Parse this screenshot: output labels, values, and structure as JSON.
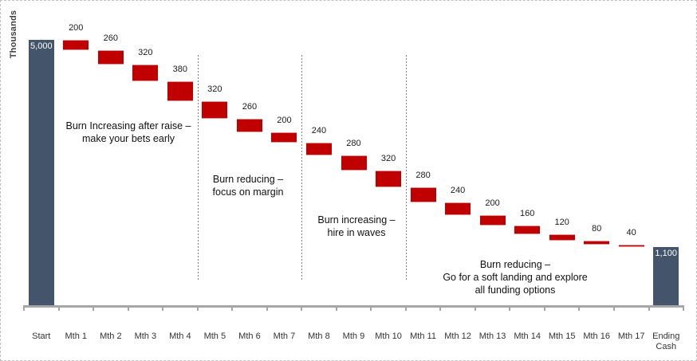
{
  "chart_data": {
    "type": "waterfall",
    "title": "",
    "y_axis_title": "Thousands",
    "axis": {
      "y_min": 0,
      "y_max": 5000,
      "gridlines": false,
      "x_axis_visible": true
    },
    "steps": [
      {
        "category": "Start",
        "type": "anchor",
        "value": 5000,
        "label": "5,000"
      },
      {
        "category": "Mth 1",
        "type": "decrease",
        "value": 200,
        "label": "200"
      },
      {
        "category": "Mth 2",
        "type": "decrease",
        "value": 260,
        "label": "260"
      },
      {
        "category": "Mth 3",
        "type": "decrease",
        "value": 320,
        "label": "320"
      },
      {
        "category": "Mth 4",
        "type": "decrease",
        "value": 380,
        "label": "380"
      },
      {
        "category": "Mth 5",
        "type": "decrease",
        "value": 320,
        "label": "320"
      },
      {
        "category": "Mth 6",
        "type": "decrease",
        "value": 260,
        "label": "260"
      },
      {
        "category": "Mth 7",
        "type": "decrease",
        "value": 200,
        "label": "200"
      },
      {
        "category": "Mth 8",
        "type": "decrease",
        "value": 240,
        "label": "240"
      },
      {
        "category": "Mth 9",
        "type": "decrease",
        "value": 280,
        "label": "280"
      },
      {
        "category": "Mth 10",
        "type": "decrease",
        "value": 320,
        "label": "320"
      },
      {
        "category": "Mth 11",
        "type": "decrease",
        "value": 280,
        "label": "280"
      },
      {
        "category": "Mth 12",
        "type": "decrease",
        "value": 240,
        "label": "240"
      },
      {
        "category": "Mth 13",
        "type": "decrease",
        "value": 200,
        "label": "200"
      },
      {
        "category": "Mth 14",
        "type": "decrease",
        "value": 160,
        "label": "160"
      },
      {
        "category": "Mth 15",
        "type": "decrease",
        "value": 120,
        "label": "120"
      },
      {
        "category": "Mth 16",
        "type": "decrease",
        "value": 80,
        "label": "80"
      },
      {
        "category": "Mth 17",
        "type": "decrease",
        "value": 40,
        "label": "40"
      },
      {
        "category": "Ending Cash",
        "type": "anchor",
        "value": 1100,
        "label": "1,100"
      }
    ],
    "phase_annotations": [
      {
        "text_lines": [
          "Burn Increasing after raise –",
          "make your bets early"
        ]
      },
      {
        "text_lines": [
          "Burn reducing –",
          "focus on margin"
        ]
      },
      {
        "text_lines": [
          "Burn increasing –",
          "hire in waves"
        ]
      },
      {
        "text_lines": [
          "Burn reducing –",
          "Go for a soft landing and explore",
          "all funding options"
        ]
      }
    ],
    "dividers_after": [
      "Mth 4",
      "Mth 7",
      "Mth 10"
    ],
    "colors": {
      "anchor_bar": "#44546A",
      "burn_bar": "#C00000",
      "burn_bar_edge": "#DC9596",
      "axis_line": "#A6A6A6",
      "divider": "#7F7F7F",
      "label_text": "#1A1A1A",
      "in_bar_text": "#FFFFFF",
      "frame_border": "#BFBFBF"
    }
  }
}
